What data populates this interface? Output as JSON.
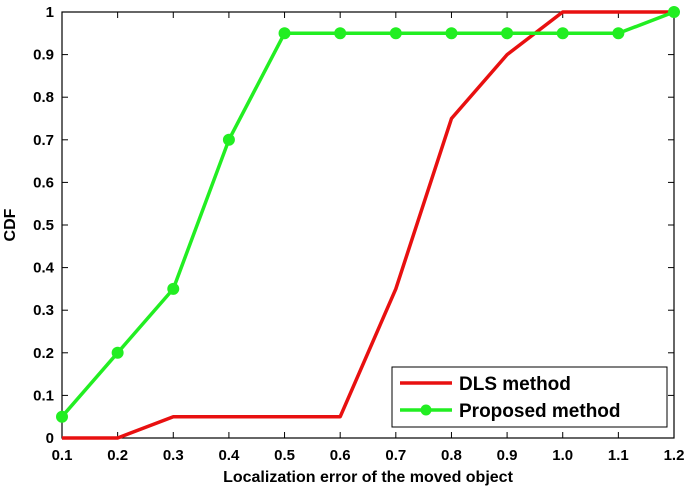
{
  "chart_data": {
    "type": "line",
    "title": "",
    "xlabel": "Localization error of the moved object",
    "ylabel": "CDF",
    "xlim": [
      0.1,
      1.2
    ],
    "ylim": [
      0,
      1
    ],
    "x_ticks": [
      "0.1",
      "0.2",
      "0.3",
      "0.4",
      "0.5",
      "0.6",
      "0.7",
      "0.8",
      "0.9",
      "1.0",
      "1.1",
      "1.2"
    ],
    "y_ticks": [
      "0",
      "0.1",
      "0.2",
      "0.3",
      "0.4",
      "0.5",
      "0.6",
      "0.7",
      "0.8",
      "0.9",
      "1"
    ],
    "grid": false,
    "legend_position": "bottom-right",
    "series": [
      {
        "name": "DLS method",
        "color": "#e81010",
        "marker": "none",
        "x": [
          0.1,
          0.2,
          0.3,
          0.4,
          0.5,
          0.6,
          0.7,
          0.8,
          0.9,
          1.0,
          1.1,
          1.2
        ],
        "y": [
          0,
          0,
          0.05,
          0.05,
          0.05,
          0.05,
          0.35,
          0.75,
          0.9,
          1,
          1,
          1
        ]
      },
      {
        "name": "Proposed method",
        "color": "#22ee22",
        "marker": "circle",
        "x": [
          0.1,
          0.2,
          0.3,
          0.4,
          0.5,
          0.6,
          0.7,
          0.8,
          0.9,
          1.0,
          1.1,
          1.2
        ],
        "y": [
          0.05,
          0.2,
          0.35,
          0.7,
          0.95,
          0.95,
          0.95,
          0.95,
          0.95,
          0.95,
          0.95,
          1
        ]
      }
    ]
  }
}
